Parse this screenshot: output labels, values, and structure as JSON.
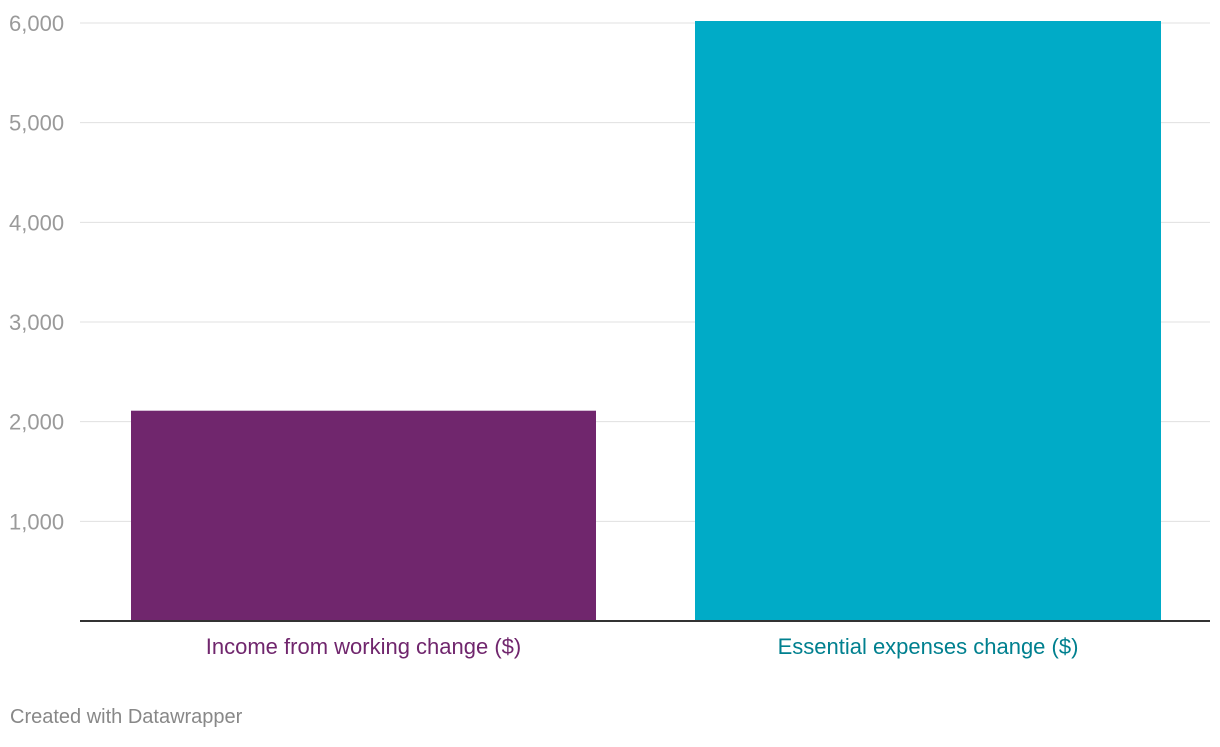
{
  "chart_data": {
    "type": "bar",
    "categories": [
      "Income from working change ($)",
      "Essential expenses change ($)"
    ],
    "values": [
      2110,
      6020
    ],
    "ylim": [
      0,
      6000
    ],
    "yticks": [
      "1,000",
      "2,000",
      "3,000",
      "4,000",
      "5,000",
      "6,000"
    ],
    "ytick_values": [
      1000,
      2000,
      3000,
      4000,
      5000,
      6000
    ],
    "grid": true,
    "bar_colors": [
      "#70266d",
      "#00abc7"
    ],
    "label_colors": [
      "#70266d",
      "#00808f"
    ],
    "title": "",
    "xlabel": "",
    "ylabel": ""
  },
  "footer": {
    "credit": "Created with Datawrapper"
  }
}
